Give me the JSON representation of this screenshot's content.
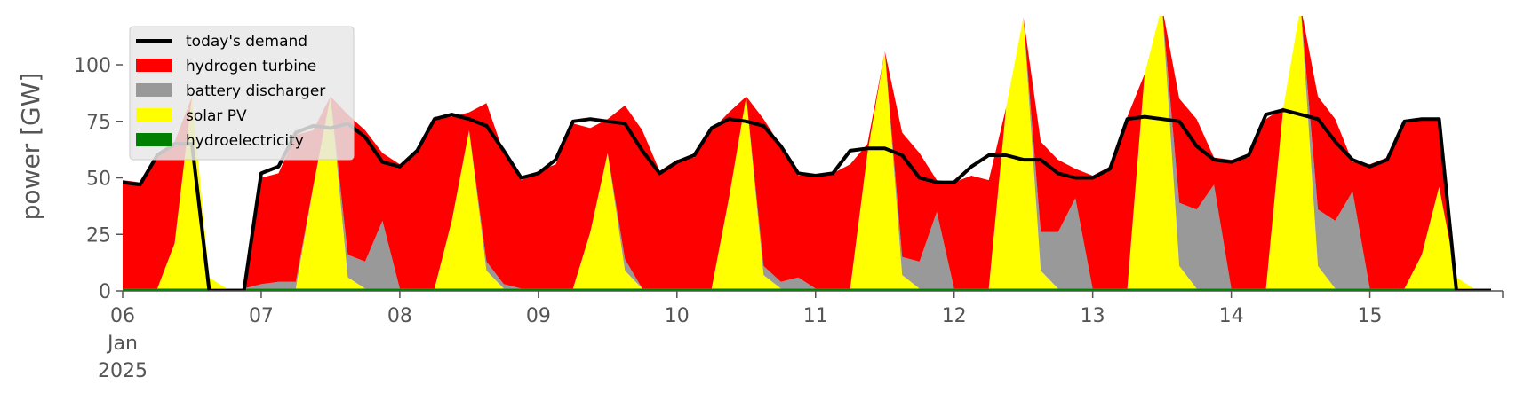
{
  "chart_data": {
    "type": "area",
    "title": "",
    "xlabel": "",
    "ylabel": "power [GW]",
    "x_start": "2025-01-06T00:00",
    "x_end": "2025-01-15T23:00",
    "x_step_hours": 3,
    "ylim": [
      0,
      120
    ],
    "yticks": [
      0,
      25,
      50,
      75,
      100
    ],
    "xtick_labels": [
      {
        "x": "2025-01-06",
        "lines": [
          "06",
          "Jan",
          "2025"
        ]
      },
      {
        "x": "2025-01-07",
        "lines": [
          "07"
        ]
      },
      {
        "x": "2025-01-08",
        "lines": [
          "08"
        ]
      },
      {
        "x": "2025-01-09",
        "lines": [
          "09"
        ]
      },
      {
        "x": "2025-01-10",
        "lines": [
          "10"
        ]
      },
      {
        "x": "2025-01-11",
        "lines": [
          "11"
        ]
      },
      {
        "x": "2025-01-12",
        "lines": [
          "12"
        ]
      },
      {
        "x": "2025-01-13",
        "lines": [
          "13"
        ]
      },
      {
        "x": "2025-01-14",
        "lines": [
          "14"
        ]
      },
      {
        "x": "2025-01-15",
        "lines": [
          "15"
        ]
      }
    ],
    "grid": false,
    "legend_position": "top-left",
    "series": [
      {
        "name": "hydroelectricity",
        "kind": "stack",
        "color": "#008000",
        "values": [
          1,
          1,
          1,
          1,
          1,
          1,
          1,
          1,
          1,
          1,
          1,
          1,
          1,
          1,
          1,
          1,
          1,
          1,
          1,
          1,
          1,
          1,
          1,
          1,
          1,
          1,
          1,
          1,
          1,
          1,
          1,
          1,
          1,
          1,
          1,
          1,
          1,
          1,
          1,
          1,
          1,
          1,
          1,
          1,
          1,
          1,
          1,
          1,
          1,
          1,
          1,
          1,
          1,
          1,
          1,
          1,
          1,
          1,
          1,
          1,
          1,
          1,
          1,
          1,
          1,
          1,
          1,
          1,
          1,
          1,
          1,
          1,
          1,
          1,
          1,
          1,
          1,
          1,
          1,
          1
        ]
      },
      {
        "name": "solar PV",
        "kind": "stack",
        "color": "#ffff00",
        "values": [
          0,
          0,
          0,
          20,
          85,
          5,
          0,
          0,
          0,
          0,
          0,
          45,
          85,
          5,
          0,
          0,
          0,
          0,
          0,
          30,
          70,
          8,
          0,
          0,
          0,
          0,
          0,
          25,
          60,
          8,
          0,
          0,
          0,
          0,
          0,
          40,
          85,
          6,
          0,
          0,
          0,
          0,
          0,
          60,
          105,
          6,
          0,
          0,
          0,
          0,
          0,
          80,
          120,
          8,
          0,
          0,
          0,
          0,
          0,
          95,
          125,
          10,
          0,
          0,
          0,
          0,
          0,
          80,
          125,
          10,
          0,
          0,
          0,
          0,
          0,
          15,
          45,
          5,
          0,
          0
        ]
      },
      {
        "name": "battery discharger",
        "kind": "stack",
        "color": "#999999",
        "values": [
          0,
          0,
          0,
          0,
          0,
          0,
          0,
          0,
          2,
          3,
          3,
          0,
          0,
          10,
          12,
          30,
          0,
          0,
          0,
          0,
          0,
          4,
          2,
          0,
          0,
          0,
          0,
          0,
          0,
          5,
          0,
          0,
          0,
          0,
          0,
          0,
          0,
          4,
          3,
          5,
          0,
          0,
          0,
          0,
          0,
          8,
          12,
          34,
          0,
          0,
          0,
          0,
          0,
          17,
          25,
          40,
          0,
          0,
          0,
          0,
          0,
          28,
          35,
          46,
          0,
          0,
          0,
          0,
          0,
          25,
          30,
          43,
          0,
          0,
          0,
          0,
          0,
          0,
          0,
          0
        ]
      },
      {
        "name": "hydrogen turbine",
        "kind": "stack",
        "color": "#ff0000",
        "values": [
          48,
          47,
          60,
          45,
          0,
          0,
          0,
          0,
          47,
          48,
          65,
          25,
          0,
          62,
          58,
          30,
          55,
          60,
          76,
          46,
          8,
          70,
          58,
          48,
          52,
          55,
          73,
          46,
          15,
          68,
          70,
          52,
          57,
          58,
          70,
          38,
          0,
          65,
          60,
          45,
          50,
          51,
          55,
          4,
          0,
          55,
          48,
          14,
          47,
          50,
          48,
          0,
          0,
          40,
          32,
          13,
          50,
          54,
          76,
          0,
          0,
          46,
          40,
          12,
          57,
          58,
          75,
          0,
          0,
          50,
          45,
          13,
          55,
          58,
          73,
          60,
          30,
          0,
          0,
          0
        ]
      },
      {
        "name": "today's demand",
        "kind": "line",
        "color": "#000000",
        "values": [
          48,
          47,
          60,
          65,
          65,
          0,
          0,
          0,
          52,
          55,
          70,
          73,
          72,
          74,
          68,
          57,
          55,
          62,
          76,
          78,
          76,
          73,
          62,
          50,
          52,
          58,
          75,
          76,
          75,
          74,
          62,
          52,
          57,
          60,
          72,
          76,
          75,
          73,
          64,
          52,
          51,
          52,
          62,
          63,
          63,
          60,
          50,
          48,
          48,
          55,
          60,
          60,
          58,
          58,
          52,
          50,
          50,
          54,
          76,
          77,
          76,
          75,
          64,
          58,
          57,
          60,
          78,
          80,
          78,
          76,
          66,
          58,
          55,
          58,
          75,
          76,
          76,
          0,
          0,
          0
        ]
      }
    ]
  }
}
